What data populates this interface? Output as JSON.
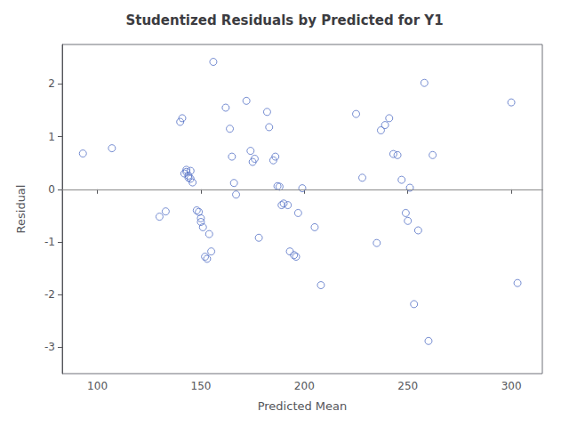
{
  "chart_data": {
    "type": "scatter",
    "title": "Studentized Residuals by Predicted for Y1",
    "xlabel": "Predicted Mean",
    "ylabel": "Residual",
    "x": [
      93,
      107,
      130,
      133,
      140,
      141,
      142,
      143,
      143,
      144,
      144,
      145,
      145,
      146,
      148,
      149,
      150,
      150,
      151,
      152,
      153,
      154,
      155,
      156,
      162,
      164,
      165,
      166,
      167,
      172,
      174,
      175,
      176,
      178,
      182,
      183,
      185,
      186,
      187,
      188,
      189,
      190,
      192,
      193,
      195,
      196,
      197,
      199,
      205,
      208,
      225,
      228,
      235,
      237,
      239,
      241,
      243,
      245,
      247,
      249,
      250,
      251,
      253,
      255,
      258,
      260,
      262,
      300,
      303
    ],
    "values": [
      0.68,
      0.78,
      -0.52,
      -0.42,
      1.28,
      1.35,
      0.3,
      0.33,
      0.37,
      0.22,
      0.26,
      0.35,
      0.2,
      0.13,
      -0.4,
      -0.43,
      -0.55,
      -0.62,
      -0.72,
      -1.28,
      -1.32,
      -0.85,
      -1.18,
      2.42,
      1.55,
      1.15,
      0.62,
      0.12,
      -0.1,
      1.68,
      0.73,
      0.52,
      0.58,
      -0.92,
      1.47,
      1.18,
      0.55,
      0.62,
      0.06,
      0.05,
      -0.3,
      -0.27,
      -0.3,
      -1.18,
      -1.25,
      -1.28,
      -0.45,
      0.02,
      -0.72,
      -1.82,
      1.43,
      0.22,
      -1.02,
      1.12,
      1.22,
      1.35,
      0.67,
      0.65,
      0.18,
      -0.45,
      -0.6,
      0.03,
      -2.18,
      -0.78,
      2.02,
      -2.88,
      0.65,
      1.65,
      -1.78
    ],
    "marker": "open circle",
    "hline": 0,
    "xlim": [
      83,
      315
    ],
    "xticks": [
      100,
      150,
      200,
      250,
      300
    ],
    "ylim": [
      -3.5,
      2.75
    ],
    "yticks": [
      -3,
      -2,
      -1,
      0,
      1,
      2
    ],
    "grid": false
  }
}
